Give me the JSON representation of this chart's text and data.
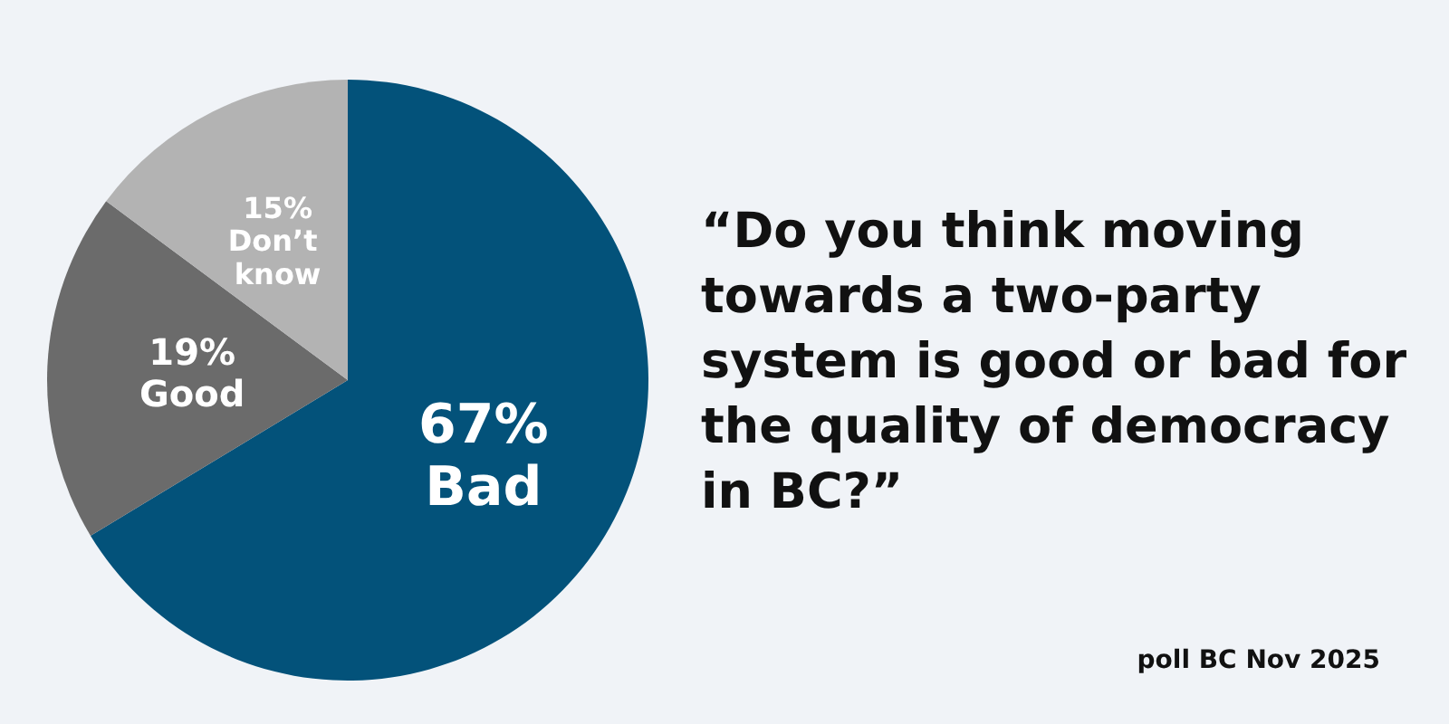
{
  "chart_data": {
    "type": "pie",
    "title": "“Do you think moving towards a two-party system is good or bad for the quality of democracy in BC?”",
    "categories": [
      "Bad",
      "Good",
      "Don’t know"
    ],
    "values": [
      67,
      19,
      15
    ],
    "value_labels": [
      "67%",
      "19%",
      "15%"
    ],
    "colors": [
      "#03527a",
      "#6b6b6b",
      "#b3b3b3"
    ],
    "legend": false,
    "annotations": [
      "poll BC Nov 2025"
    ]
  }
}
